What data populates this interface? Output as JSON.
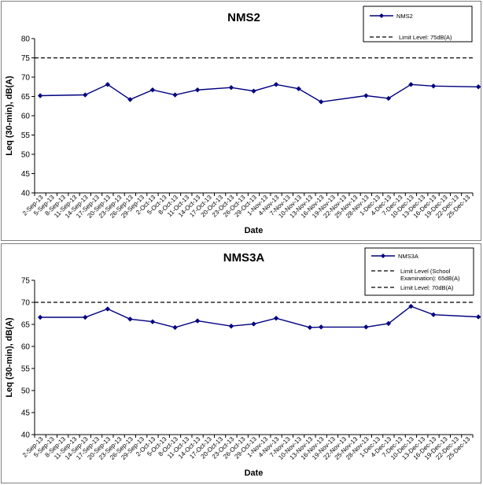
{
  "chart_data": [
    {
      "type": "line",
      "title": "NMS2",
      "xlabel": "Date",
      "ylabel": "Leq (30-min), dB(A)",
      "ylim": [
        40,
        80
      ],
      "yticks": [
        40,
        45,
        50,
        55,
        60,
        65,
        70,
        75,
        80
      ],
      "categories": [
        "2-Sep-13",
        "5-Sep-13",
        "8-Sep-13",
        "11-Sep-13",
        "14-Sep-13",
        "17-Sep-13",
        "20-Sep-13",
        "23-Sep-13",
        "26-Sep-13",
        "29-Sep-13",
        "2-Oct-13",
        "5-Oct-13",
        "8-Oct-13",
        "11-Oct-13",
        "14-Oct-13",
        "17-Oct-13",
        "20-Oct-13",
        "23-Oct-13",
        "26-Oct-13",
        "29-Oct-13",
        "1-Nov-13",
        "4-Nov-13",
        "7-Nov-13",
        "10-Nov-13",
        "13-Nov-13",
        "16-Nov-13",
        "19-Nov-13",
        "22-Nov-13",
        "25-Nov-13",
        "28-Nov-13",
        "1-Dec-13",
        "4-Dec-13",
        "7-Dec-13",
        "10-Dec-13",
        "13-Dec-13",
        "16-Dec-13",
        "19-Dec-13",
        "22-Dec-13",
        "25-Dec-13"
      ],
      "series": [
        {
          "name": "NMS2",
          "color": "#000080",
          "x": [
            "2-Sep-13",
            "14-Sep-13",
            "20-Sep-13",
            "26-Sep-13",
            "2-Oct-13",
            "8-Oct-13",
            "14-Oct-13",
            "23-Oct-13",
            "29-Oct-13",
            "4-Nov-13",
            "10-Nov-13",
            "16-Nov-13",
            "28-Nov-13",
            "4-Dec-13",
            "10-Dec-13",
            "16-Dec-13",
            "28-Dec-13"
          ],
          "values": [
            65.2,
            65.4,
            68.1,
            64.2,
            66.7,
            65.4,
            66.7,
            67.3,
            66.4,
            68.1,
            67.0,
            63.6,
            65.2,
            64.5,
            68.1,
            67.7,
            67.5
          ]
        }
      ],
      "limits": [
        {
          "label": "Limit Level: 75dB(A)",
          "value": 75
        }
      ],
      "legend_position": "top-right",
      "grid": false
    },
    {
      "type": "line",
      "title": "NMS3A",
      "xlabel": "Date",
      "ylabel": "Leq (30-min), dB(A)",
      "ylim": [
        40,
        75
      ],
      "yticks": [
        40,
        45,
        50,
        55,
        60,
        65,
        70,
        75
      ],
      "categories": [
        "2-Sep-13",
        "5-Sep-13",
        "8-Sep-13",
        "11-Sep-13",
        "14-Sep-13",
        "17-Sep-13",
        "20-Sep-13",
        "23-Sep-13",
        "26-Sep-13",
        "29-Sep-13",
        "2-Oct-13",
        "5-Oct-13",
        "8-Oct-13",
        "11-Oct-13",
        "14-Oct-13",
        "17-Oct-13",
        "20-Oct-13",
        "23-Oct-13",
        "26-Oct-13",
        "29-Oct-13",
        "1-Nov-13",
        "4-Nov-13",
        "7-Nov-13",
        "10-Nov-13",
        "13-Nov-13",
        "16-Nov-13",
        "19-Nov-13",
        "22-Nov-13",
        "25-Nov-13",
        "28-Nov-13",
        "1-Dec-13",
        "4-Dec-13",
        "7-Dec-13",
        "10-Dec-13",
        "13-Dec-13",
        "16-Dec-13",
        "19-Dec-13",
        "22-Dec-13",
        "25-Dec-13"
      ],
      "series": [
        {
          "name": "NMS3A",
          "color": "#000080",
          "x": [
            "2-Sep-13",
            "14-Sep-13",
            "20-Sep-13",
            "26-Sep-13",
            "2-Oct-13",
            "8-Oct-13",
            "14-Oct-13",
            "23-Oct-13",
            "29-Oct-13",
            "4-Nov-13",
            "13-Nov-13",
            "16-Nov-13",
            "28-Nov-13",
            "4-Dec-13",
            "10-Dec-13",
            "16-Dec-13",
            "28-Dec-13"
          ],
          "values": [
            66.6,
            66.6,
            68.5,
            66.2,
            65.6,
            64.3,
            65.8,
            64.6,
            65.1,
            66.4,
            64.3,
            64.4,
            64.4,
            65.2,
            69.1,
            67.2,
            66.7
          ]
        }
      ],
      "limits": [
        {
          "label": "Limit Level (School Examination): 65dB(A)",
          "value": null
        },
        {
          "label": "Limit Level: 70dB(A)",
          "value": 70
        }
      ],
      "legend_position": "top-right",
      "grid": false
    }
  ]
}
